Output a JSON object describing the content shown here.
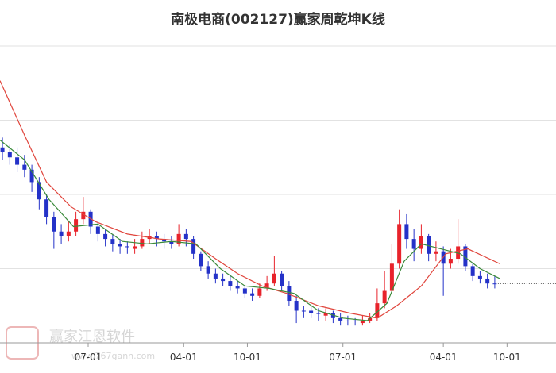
{
  "chart_data": {
    "type": "candlestick",
    "title": "南极电商(002127)赢家周乾坤K线",
    "watermark": "赢家江恩软件",
    "watermark_url": "www.767gann.com",
    "xlim": [
      0,
      227
    ],
    "ylim": [
      2,
      14
    ],
    "xticks": [
      {
        "value": 36,
        "label": "07-01"
      },
      {
        "value": 75,
        "label": "04-01"
      },
      {
        "value": 101,
        "label": "10-01"
      },
      {
        "value": 140,
        "label": "07-01"
      },
      {
        "value": 181,
        "label": "04-01"
      },
      {
        "value": 207,
        "label": "10-01"
      }
    ],
    "ygrid": [
      2,
      5,
      8,
      11,
      14
    ],
    "grid": true,
    "up_color": "#e8232b",
    "down_color": "#2432c8",
    "x": [
      1,
      4,
      7,
      10,
      13,
      16,
      19,
      22,
      25,
      28,
      31,
      34,
      37,
      40,
      43,
      46,
      49,
      52,
      55,
      58,
      61,
      64,
      67,
      70,
      73,
      76,
      79,
      82,
      85,
      88,
      91,
      94,
      97,
      100,
      103,
      106,
      109,
      112,
      115,
      118,
      121,
      124,
      127,
      130,
      133,
      136,
      139,
      142,
      145,
      148,
      151,
      154,
      157,
      160,
      163,
      166,
      169,
      172,
      175,
      178,
      181,
      184,
      187,
      190,
      193,
      196,
      199,
      202
    ],
    "ohlc": [
      [
        9.9,
        10.3,
        9.4,
        9.7
      ],
      [
        9.7,
        10.0,
        9.2,
        9.5
      ],
      [
        9.5,
        9.9,
        8.9,
        9.2
      ],
      [
        9.2,
        9.6,
        8.7,
        9.0
      ],
      [
        9.0,
        9.2,
        8.1,
        8.5
      ],
      [
        8.5,
        8.7,
        7.4,
        7.8
      ],
      [
        7.8,
        8.0,
        6.8,
        7.1
      ],
      [
        7.1,
        7.3,
        5.8,
        6.5
      ],
      [
        6.5,
        6.8,
        6.0,
        6.3
      ],
      [
        6.3,
        6.9,
        6.1,
        6.5
      ],
      [
        6.5,
        7.3,
        6.3,
        7.0
      ],
      [
        7.0,
        7.9,
        6.8,
        7.3
      ],
      [
        7.3,
        7.4,
        6.4,
        6.7
      ],
      [
        6.7,
        6.9,
        6.1,
        6.4
      ],
      [
        6.4,
        6.6,
        5.9,
        6.2
      ],
      [
        6.2,
        6.4,
        5.7,
        6.0
      ],
      [
        6.0,
        6.2,
        5.6,
        5.9
      ],
      [
        5.9,
        6.1,
        5.6,
        5.9
      ],
      [
        5.8,
        6.2,
        5.6,
        5.9
      ],
      [
        5.9,
        6.5,
        5.8,
        6.2
      ],
      [
        6.2,
        6.6,
        6.0,
        6.3
      ],
      [
        6.3,
        6.5,
        5.9,
        6.2
      ],
      [
        6.2,
        6.4,
        5.8,
        6.1
      ],
      [
        6.1,
        6.3,
        5.8,
        6.0
      ],
      [
        6.0,
        6.8,
        5.9,
        6.4
      ],
      [
        6.4,
        6.6,
        5.9,
        6.2
      ],
      [
        6.2,
        6.3,
        5.4,
        5.6
      ],
      [
        5.6,
        5.7,
        4.9,
        5.1
      ],
      [
        5.1,
        5.3,
        4.6,
        4.8
      ],
      [
        4.8,
        5.0,
        4.4,
        4.6
      ],
      [
        4.6,
        4.8,
        4.3,
        4.5
      ],
      [
        4.5,
        4.7,
        4.1,
        4.3
      ],
      [
        4.3,
        4.5,
        4.0,
        4.2
      ],
      [
        4.2,
        4.3,
        3.8,
        4.0
      ],
      [
        4.0,
        4.2,
        3.7,
        3.9
      ],
      [
        3.9,
        4.4,
        3.8,
        4.2
      ],
      [
        4.2,
        4.7,
        4.1,
        4.4
      ],
      [
        4.4,
        5.5,
        4.3,
        4.8
      ],
      [
        4.8,
        4.9,
        4.1,
        4.3
      ],
      [
        4.3,
        4.5,
        3.5,
        3.7
      ],
      [
        3.7,
        3.9,
        2.8,
        3.3
      ],
      [
        3.3,
        3.5,
        3.0,
        3.3
      ],
      [
        3.3,
        3.5,
        3.0,
        3.2
      ],
      [
        3.2,
        3.4,
        2.9,
        3.2
      ],
      [
        3.1,
        3.4,
        2.9,
        3.2
      ],
      [
        3.2,
        3.3,
        2.8,
        3.0
      ],
      [
        3.0,
        3.2,
        2.7,
        2.9
      ],
      [
        2.9,
        3.1,
        2.7,
        2.9
      ],
      [
        2.9,
        3.0,
        2.7,
        2.9
      ],
      [
        2.8,
        3.1,
        2.7,
        2.9
      ],
      [
        2.9,
        3.2,
        2.8,
        3.0
      ],
      [
        3.0,
        4.2,
        2.9,
        3.6
      ],
      [
        3.6,
        4.9,
        3.4,
        4.1
      ],
      [
        4.1,
        6.0,
        4.0,
        5.2
      ],
      [
        5.2,
        7.4,
        5.0,
        6.8
      ],
      [
        6.8,
        7.2,
        5.8,
        6.2
      ],
      [
        6.2,
        6.6,
        5.3,
        5.8
      ],
      [
        5.8,
        6.8,
        5.6,
        6.3
      ],
      [
        6.3,
        6.4,
        5.3,
        5.6
      ],
      [
        5.6,
        6.1,
        5.3,
        5.7
      ],
      [
        5.7,
        5.9,
        3.9,
        5.2
      ],
      [
        5.2,
        5.8,
        5.0,
        5.4
      ],
      [
        5.4,
        7.0,
        5.2,
        5.9
      ],
      [
        5.9,
        6.0,
        4.9,
        5.1
      ],
      [
        5.1,
        5.2,
        4.5,
        4.7
      ],
      [
        4.7,
        4.9,
        4.4,
        4.6
      ],
      [
        4.6,
        4.8,
        4.2,
        4.4
      ],
      [
        4.4,
        4.7,
        4.2,
        4.4
      ]
    ],
    "moving_averages": [
      {
        "color": "#e0453c",
        "x": [
          0,
          10,
          19,
          29,
          39,
          52,
          65,
          78,
          88,
          97,
          107,
          117,
          130,
          143,
          154,
          162,
          172,
          182,
          191,
          204
        ],
        "values": [
          12.6,
          10.4,
          8.5,
          7.5,
          6.9,
          6.4,
          6.2,
          6.1,
          5.4,
          4.8,
          4.3,
          4.0,
          3.5,
          3.2,
          3.0,
          3.5,
          4.3,
          5.6,
          5.8,
          5.2
        ]
      },
      {
        "color": "#3a8a3a",
        "x": [
          0,
          10,
          20,
          30,
          40,
          50,
          60,
          70,
          80,
          90,
          100,
          110,
          120,
          130,
          140,
          150,
          158,
          165,
          172,
          180,
          188,
          196,
          204
        ],
        "values": [
          10.2,
          9.4,
          7.8,
          6.7,
          6.8,
          6.1,
          6.0,
          6.1,
          6.0,
          5.0,
          4.3,
          4.2,
          4.0,
          3.3,
          3.0,
          2.9,
          3.6,
          5.3,
          6.0,
          5.8,
          5.6,
          5.0,
          4.6
        ]
      }
    ]
  }
}
